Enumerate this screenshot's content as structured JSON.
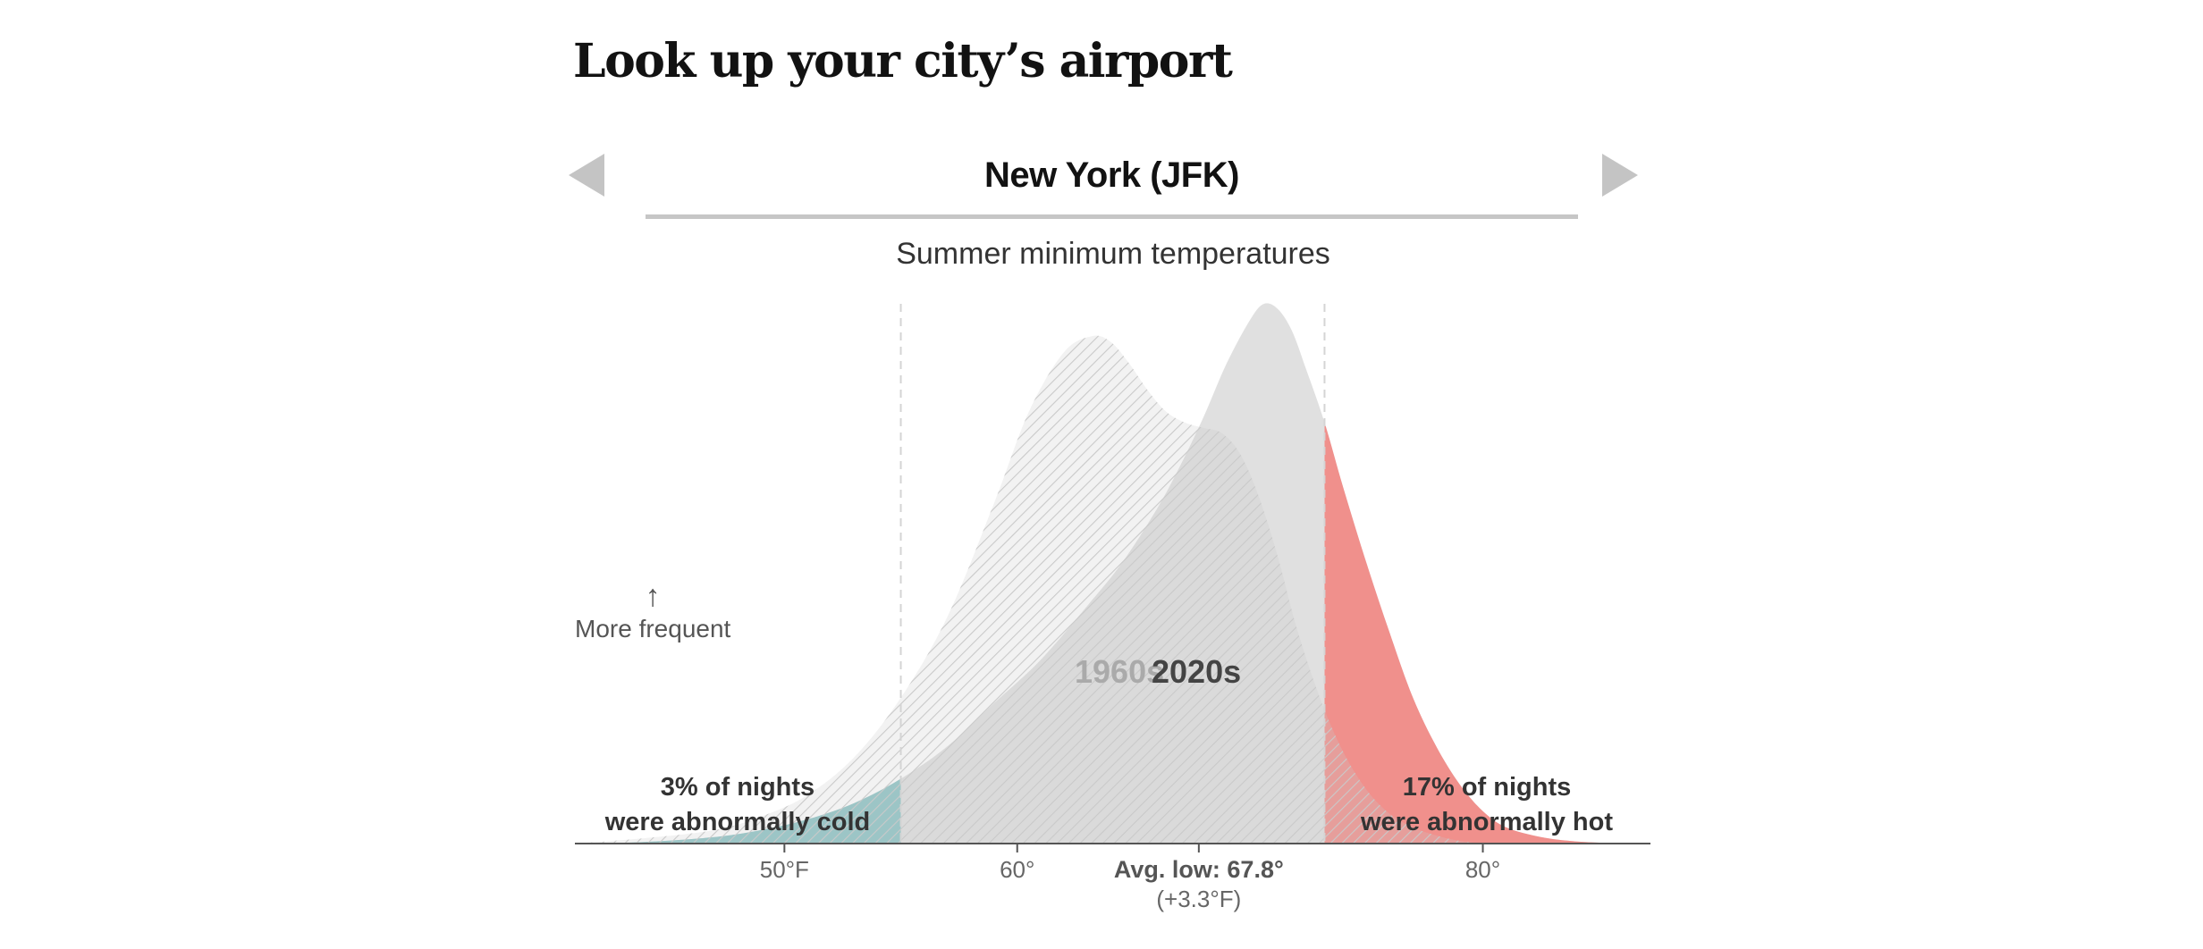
{
  "heading": "Look up your city’s airport",
  "selector": {
    "city": "New York (JFK)",
    "prev_icon": "triangle-left-icon",
    "next_icon": "triangle-right-icon"
  },
  "colors": {
    "past_curve": "#e3e3e3",
    "recent_curve": "#e0e0e0",
    "hatch": "#c9c9c9",
    "cold_fill": "#8ec4c6",
    "hot_fill": "#f0908c",
    "axis": "#555555",
    "threshold_line": "#d4d4d4"
  },
  "chart_data": {
    "type": "area",
    "title": "Summer minimum temperatures",
    "xlabel": "",
    "ylabel": "More frequent",
    "ylabel_arrow": "↑",
    "xlim": [
      41,
      87.2
    ],
    "ylim": [
      0,
      1
    ],
    "grid": false,
    "x_ticks": [
      {
        "value": 50,
        "label": "50°F"
      },
      {
        "value": 60,
        "label": "60°"
      },
      {
        "value": 80,
        "label": "80°"
      }
    ],
    "thresholds": {
      "cold": 55,
      "hot": 73.2
    },
    "average": {
      "value": 67.8,
      "label": "Avg. low: 67.8°",
      "change": "(+3.3°F)"
    },
    "series": [
      {
        "name": "1960s",
        "label": "1960s",
        "style": "hatched",
        "x": [
          41,
          44,
          47,
          49,
          51,
          53,
          55,
          57,
          59,
          60.5,
          62,
          63.2,
          64,
          64.8,
          65.6,
          66.4,
          67.2,
          68,
          68.8,
          69.6,
          70.4,
          71.2,
          72,
          73,
          74,
          75,
          76,
          77,
          78,
          79,
          80
        ],
        "values": [
          0,
          0.01,
          0.025,
          0.05,
          0.09,
          0.16,
          0.27,
          0.42,
          0.63,
          0.8,
          0.91,
          0.94,
          0.93,
          0.89,
          0.84,
          0.8,
          0.78,
          0.77,
          0.76,
          0.72,
          0.64,
          0.53,
          0.4,
          0.27,
          0.17,
          0.1,
          0.055,
          0.03,
          0.015,
          0.005,
          0
        ]
      },
      {
        "name": "2020s",
        "label": "2020s",
        "style": "solid",
        "x": [
          41,
          44,
          47,
          49,
          51,
          53,
          55,
          57,
          59,
          61,
          63,
          64.5,
          66,
          67,
          68,
          69,
          70,
          70.6,
          71.2,
          71.8,
          72.4,
          73.2,
          74,
          75,
          76,
          77,
          78,
          79,
          80,
          81,
          82.5,
          84,
          86
        ],
        "values": [
          0,
          0.003,
          0.012,
          0.025,
          0.045,
          0.075,
          0.12,
          0.18,
          0.26,
          0.34,
          0.44,
          0.52,
          0.62,
          0.7,
          0.79,
          0.89,
          0.97,
          1.0,
          0.99,
          0.95,
          0.88,
          0.78,
          0.66,
          0.52,
          0.39,
          0.27,
          0.18,
          0.11,
          0.06,
          0.03,
          0.012,
          0.004,
          0
        ]
      }
    ],
    "annotations": {
      "cold_line1": "3% of nights",
      "cold_line2": "were abnormally cold",
      "hot_line1": "17% of nights",
      "hot_line2": "were abnormally hot"
    }
  }
}
